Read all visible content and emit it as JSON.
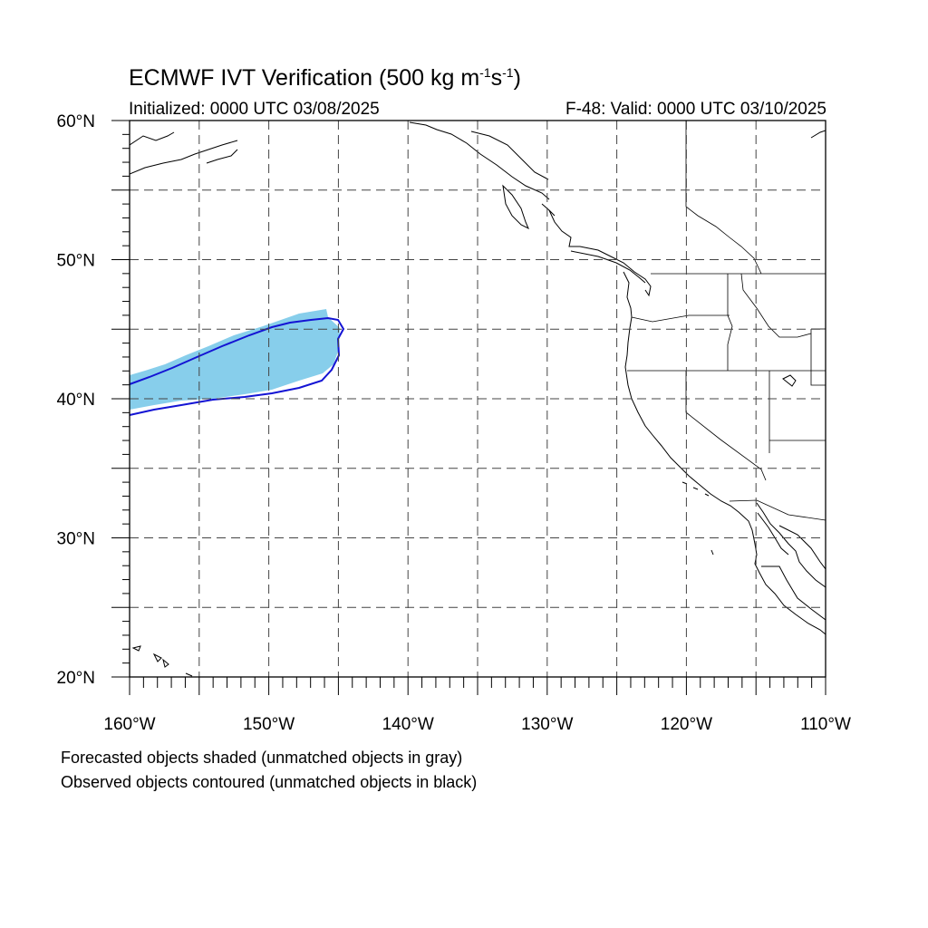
{
  "title": {
    "main_prefix": "ECMWF IVT Verification (500 kg m",
    "exp1": "-1",
    "mid": "s",
    "exp2": "-1",
    "suffix": ")"
  },
  "initialized": "Initialized: 0000 UTC 03/08/2025",
  "valid": "F-48: Valid: 0000 UTC 03/10/2025",
  "notes": {
    "forecast": "Forecasted objects shaded (unmatched objects in gray)",
    "observed": "Observed objects contoured (unmatched objects in black)"
  },
  "map": {
    "lon_range": [
      -160,
      -110
    ],
    "lat_range": [
      20,
      60
    ],
    "lat_labels": [
      "20°N",
      "30°N",
      "40°N",
      "50°N",
      "60°N"
    ],
    "lon_labels": [
      "160°W",
      "150°W",
      "140°W",
      "130°W",
      "120°W",
      "110°W"
    ],
    "grid_style": "dashed",
    "forecast_color": "#87ceeb",
    "observed_color": "#1414d4"
  }
}
